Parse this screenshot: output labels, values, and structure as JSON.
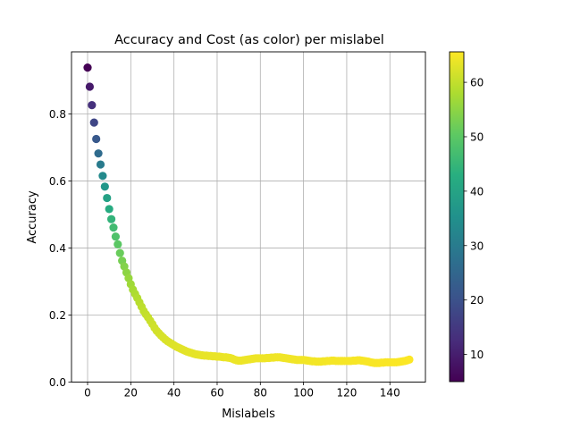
{
  "chart_data": {
    "type": "scatter",
    "title": "Accuracy and Cost (as color) per mislabel",
    "xlabel": "Mislabels",
    "ylabel": "Accuracy",
    "xlim": [
      -7.45,
      156.45
    ],
    "ylim": [
      0,
      0.985
    ],
    "xticks": [
      0,
      20,
      40,
      60,
      80,
      100,
      120,
      140
    ],
    "yticks": [
      0.0,
      0.2,
      0.4,
      0.6,
      0.8
    ],
    "grid": true,
    "colormap": "viridis",
    "colorbar": {
      "range": [
        5,
        65.6
      ],
      "ticks": [
        10,
        20,
        30,
        40,
        50,
        60
      ]
    },
    "x": [
      0,
      1,
      2,
      3,
      4,
      5,
      6,
      7,
      8,
      9,
      10,
      11,
      12,
      13,
      14,
      15,
      16,
      17,
      18,
      19,
      20,
      21,
      22,
      23,
      24,
      25,
      26,
      27,
      28,
      29,
      30,
      31,
      32,
      33,
      34,
      35,
      36,
      37,
      38,
      39,
      40,
      41,
      42,
      43,
      44,
      45,
      46,
      47,
      48,
      49,
      50,
      51,
      52,
      53,
      54,
      55,
      56,
      57,
      58,
      59,
      60,
      61,
      62,
      63,
      64,
      65,
      66,
      67,
      68,
      69,
      70,
      71,
      72,
      73,
      74,
      75,
      76,
      77,
      78,
      79,
      80,
      81,
      82,
      83,
      84,
      85,
      86,
      87,
      88,
      89,
      90,
      91,
      92,
      93,
      94,
      95,
      96,
      97,
      98,
      99,
      100,
      101,
      102,
      103,
      104,
      105,
      106,
      107,
      108,
      109,
      110,
      111,
      112,
      113,
      114,
      115,
      116,
      117,
      118,
      119,
      120,
      121,
      122,
      123,
      124,
      125,
      126,
      127,
      128,
      129,
      130,
      131,
      132,
      133,
      134,
      135,
      136,
      137,
      138,
      139,
      140,
      141,
      142,
      143,
      144,
      145,
      146,
      147,
      148,
      149
    ],
    "y": [
      0.938,
      0.881,
      0.826,
      0.774,
      0.725,
      0.682,
      0.649,
      0.615,
      0.583,
      0.549,
      0.516,
      0.486,
      0.461,
      0.434,
      0.411,
      0.385,
      0.362,
      0.345,
      0.327,
      0.31,
      0.292,
      0.276,
      0.263,
      0.251,
      0.238,
      0.225,
      0.212,
      0.202,
      0.193,
      0.183,
      0.173,
      0.162,
      0.153,
      0.146,
      0.139,
      0.133,
      0.127,
      0.122,
      0.118,
      0.114,
      0.11,
      0.106,
      0.103,
      0.1,
      0.097,
      0.094,
      0.091,
      0.089,
      0.087,
      0.085,
      0.083,
      0.082,
      0.081,
      0.08,
      0.079,
      0.079,
      0.078,
      0.078,
      0.077,
      0.077,
      0.076,
      0.076,
      0.075,
      0.074,
      0.074,
      0.073,
      0.072,
      0.07,
      0.067,
      0.065,
      0.064,
      0.064,
      0.065,
      0.066,
      0.067,
      0.068,
      0.069,
      0.07,
      0.071,
      0.071,
      0.071,
      0.071,
      0.071,
      0.072,
      0.072,
      0.073,
      0.073,
      0.074,
      0.074,
      0.074,
      0.073,
      0.072,
      0.071,
      0.07,
      0.069,
      0.068,
      0.067,
      0.066,
      0.066,
      0.066,
      0.066,
      0.065,
      0.064,
      0.063,
      0.062,
      0.062,
      0.061,
      0.061,
      0.061,
      0.062,
      0.062,
      0.063,
      0.063,
      0.064,
      0.064,
      0.063,
      0.063,
      0.063,
      0.063,
      0.063,
      0.063,
      0.063,
      0.063,
      0.064,
      0.064,
      0.065,
      0.065,
      0.064,
      0.063,
      0.062,
      0.061,
      0.059,
      0.058,
      0.057,
      0.057,
      0.057,
      0.058,
      0.058,
      0.059,
      0.059,
      0.059,
      0.059,
      0.059,
      0.059,
      0.06,
      0.061,
      0.062,
      0.063,
      0.065,
      0.067
    ],
    "color_values": [
      5,
      9.2,
      13.4,
      17.6,
      21.8,
      26.0,
      30.0,
      33.6,
      36.8,
      39.6,
      42.2,
      44.4,
      46.5,
      48.3,
      50.0,
      51.5,
      52.8,
      54.0,
      55.0,
      55.9,
      56.7,
      57.4,
      58.0,
      58.5,
      59.0,
      59.4,
      59.8,
      60.1,
      60.4,
      60.7,
      61.0,
      61.2,
      61.4,
      61.6,
      61.8,
      62.0,
      62.1,
      62.3,
      62.4,
      62.5,
      62.6,
      62.7,
      62.8,
      62.9,
      63.0,
      63.0,
      63.1,
      63.2,
      63.2,
      63.3,
      63.3,
      63.4,
      63.4,
      63.5,
      63.5,
      63.6,
      63.6,
      63.6,
      63.7,
      63.7,
      63.7,
      63.8,
      63.8,
      63.8,
      63.9,
      63.9,
      63.9,
      63.9,
      64.0,
      64.0,
      64.0,
      64.0,
      64.1,
      64.1,
      64.1,
      64.1,
      64.1,
      64.2,
      64.2,
      64.2,
      64.2,
      64.2,
      64.3,
      64.3,
      64.3,
      64.3,
      64.3,
      64.3,
      64.4,
      64.4,
      64.4,
      64.4,
      64.4,
      64.4,
      64.5,
      64.5,
      64.5,
      64.5,
      64.5,
      64.5,
      64.6,
      64.6,
      64.6,
      64.6,
      64.6,
      64.6,
      64.7,
      64.7,
      64.7,
      64.7,
      64.7,
      64.7,
      64.8,
      64.8,
      64.8,
      64.8,
      64.8,
      64.8,
      64.9,
      64.9,
      64.9,
      64.9,
      64.9,
      64.9,
      65.0,
      65.0,
      65.0,
      65.0,
      65.0,
      65.0,
      65.1,
      65.1,
      65.1,
      65.1,
      65.1,
      65.1,
      65.2,
      65.2,
      65.2,
      65.2,
      65.2,
      65.2,
      65.3,
      65.3,
      65.3,
      65.3,
      65.3,
      65.4,
      65.4,
      65.5,
      65.5,
      65.6
    ]
  }
}
